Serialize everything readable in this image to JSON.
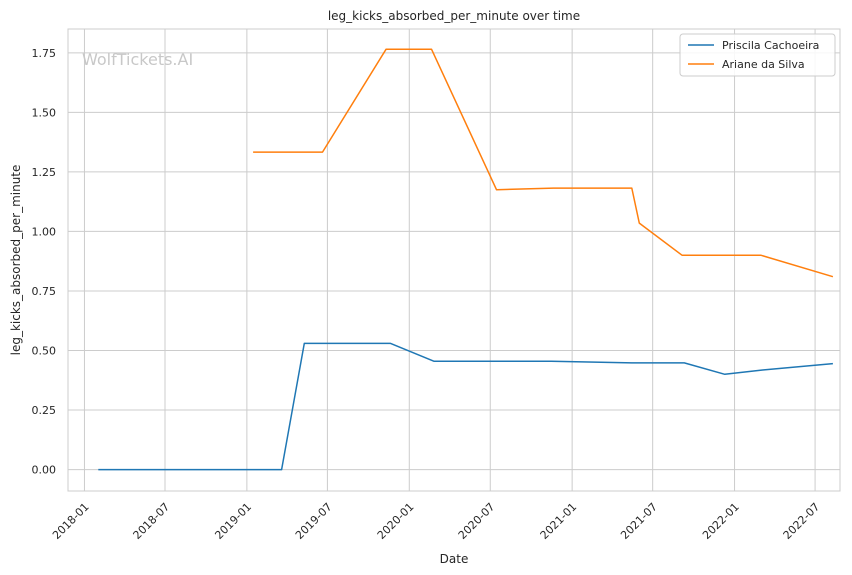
{
  "watermark": "WolfTickets.AI",
  "chart_data": {
    "type": "line",
    "title": "leg_kicks_absorbed_per_minute over time",
    "xlabel": "Date",
    "ylabel": "leg_kicks_absorbed_per_minute",
    "x_axis_type": "date",
    "xlim": [
      "2017-11-25",
      "2022-08-26"
    ],
    "ylim": [
      -0.09,
      1.85
    ],
    "x_ticks": [
      "2018-01",
      "2018-07",
      "2019-01",
      "2019-07",
      "2020-01",
      "2020-07",
      "2021-01",
      "2021-07",
      "2022-01",
      "2022-07"
    ],
    "x_tick_dates": [
      "2018-01-01",
      "2018-07-01",
      "2019-01-01",
      "2019-07-01",
      "2020-01-01",
      "2020-07-01",
      "2021-01-01",
      "2021-07-01",
      "2022-01-01",
      "2022-07-01"
    ],
    "y_ticks": [
      "0.00",
      "0.25",
      "0.50",
      "0.75",
      "1.00",
      "1.25",
      "1.50",
      "1.75"
    ],
    "y_tick_values": [
      0,
      0.25,
      0.5,
      0.75,
      1.0,
      1.25,
      1.5,
      1.75
    ],
    "grid": true,
    "legend_position": "top-right",
    "series": [
      {
        "name": "Priscila Cachoeira",
        "color": "#1f77b4",
        "points": [
          {
            "x": "2018-02-01",
            "y": 0.0
          },
          {
            "x": "2019-03-20",
            "y": 0.0
          },
          {
            "x": "2019-05-10",
            "y": 0.53
          },
          {
            "x": "2019-11-20",
            "y": 0.53
          },
          {
            "x": "2020-02-25",
            "y": 0.455
          },
          {
            "x": "2020-11-15",
            "y": 0.455
          },
          {
            "x": "2021-05-15",
            "y": 0.448
          },
          {
            "x": "2021-09-10",
            "y": 0.448
          },
          {
            "x": "2021-12-10",
            "y": 0.4
          },
          {
            "x": "2022-03-05",
            "y": 0.418
          },
          {
            "x": "2022-08-10",
            "y": 0.445
          }
        ]
      },
      {
        "name": "Ariane da Silva",
        "color": "#ff7f0e",
        "points": [
          {
            "x": "2019-01-15",
            "y": 1.333
          },
          {
            "x": "2019-06-20",
            "y": 1.333
          },
          {
            "x": "2019-11-10",
            "y": 1.765
          },
          {
            "x": "2020-02-20",
            "y": 1.765
          },
          {
            "x": "2020-07-15",
            "y": 1.175
          },
          {
            "x": "2020-11-20",
            "y": 1.182
          },
          {
            "x": "2021-05-15",
            "y": 1.182
          },
          {
            "x": "2021-06-01",
            "y": 1.035
          },
          {
            "x": "2021-09-05",
            "y": 0.9
          },
          {
            "x": "2022-03-01",
            "y": 0.9
          },
          {
            "x": "2022-08-10",
            "y": 0.81
          }
        ]
      }
    ]
  }
}
